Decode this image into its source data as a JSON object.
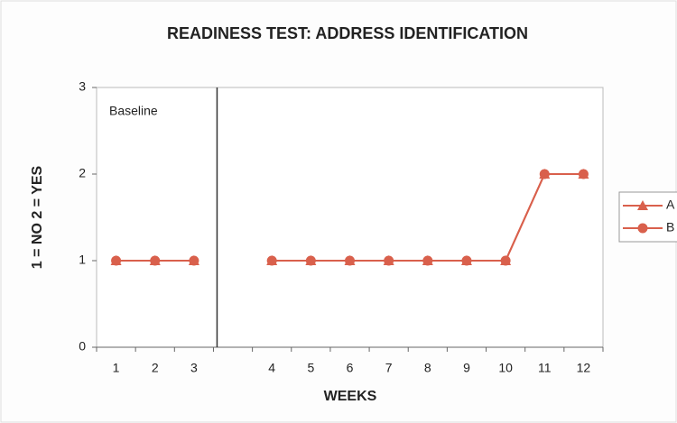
{
  "chart_data": {
    "type": "line",
    "title": "READINESS TEST: ADDRESS IDENTIFICATION",
    "xlabel": "WEEKS",
    "ylabel": "1 = NO  2 = YES",
    "annotation": "Baseline",
    "categories": [
      "1",
      "2",
      "3",
      null,
      "4",
      "5",
      "6",
      "7",
      "8",
      "9",
      "10",
      "11",
      "12"
    ],
    "series": [
      {
        "name": "A",
        "color": "#d9604c",
        "marker": "triangle",
        "values": [
          1,
          1,
          1,
          null,
          1,
          1,
          1,
          1,
          1,
          1,
          1,
          2,
          2
        ]
      },
      {
        "name": "B",
        "color": "#d9604c",
        "marker": "circle",
        "values": [
          1,
          1,
          1,
          null,
          1,
          1,
          1,
          1,
          1,
          1,
          1,
          2,
          2
        ]
      }
    ],
    "ylim": [
      0,
      3
    ],
    "yticks": [
      0,
      1,
      2,
      3
    ],
    "legend": "right"
  }
}
